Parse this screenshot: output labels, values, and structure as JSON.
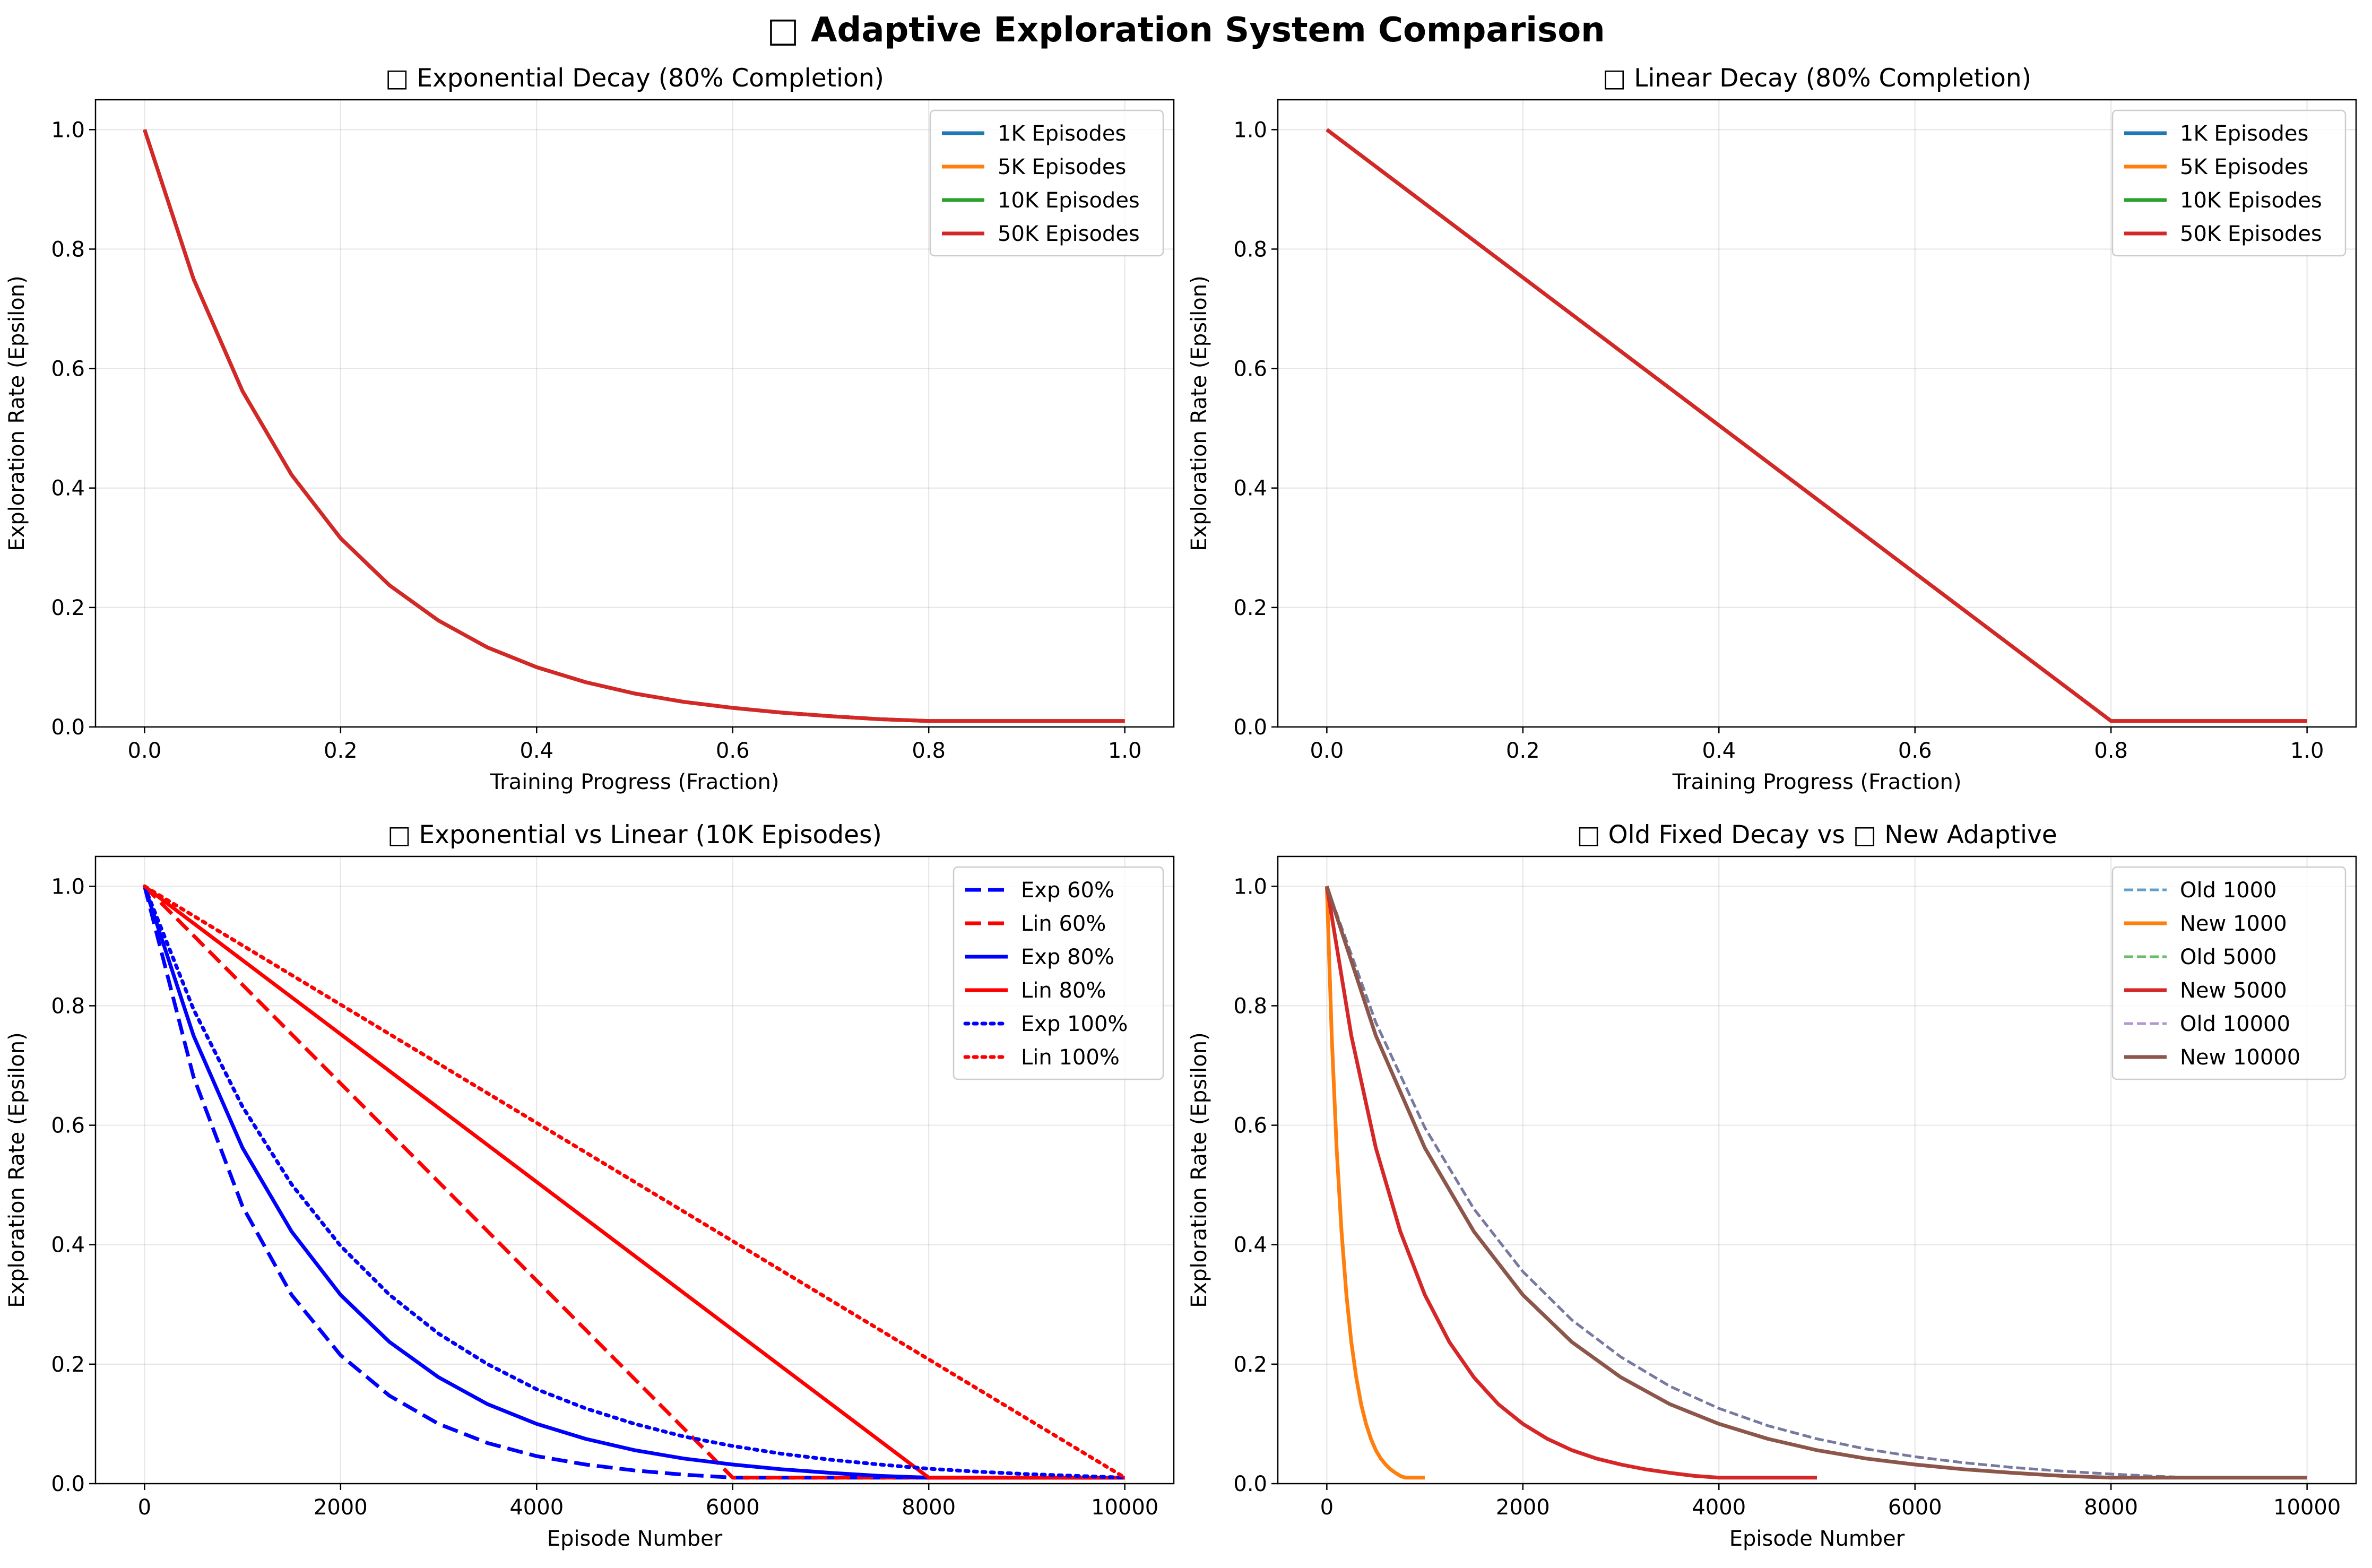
{
  "figure": {
    "suptitle": "□ Adaptive Exploration System Comparison"
  },
  "colors": {
    "blue": "#1f77b4",
    "orange": "#ff7f0e",
    "green": "#2ca02c",
    "red": "#d62728",
    "purple": "#9467bd",
    "brown": "#8c564b",
    "pure_blue": "#0000ff",
    "pure_red": "#ff0000"
  },
  "chart_data": [
    {
      "type": "line",
      "title": "□ Exponential Decay (80% Completion)",
      "xlabel": "Training Progress (Fraction)",
      "ylabel": "Exploration Rate (Epsilon)",
      "xlim": [
        -0.05,
        1.05
      ],
      "ylim": [
        0,
        1.05
      ],
      "xticks": [
        0.0,
        0.2,
        0.4,
        0.6,
        0.8,
        1.0
      ],
      "xtick_labels": [
        "0.0",
        "0.2",
        "0.4",
        "0.6",
        "0.8",
        "1.0"
      ],
      "yticks": [
        0.0,
        0.2,
        0.4,
        0.6,
        0.8,
        1.0
      ],
      "ytick_labels": [
        "0.0",
        "0.2",
        "0.4",
        "0.6",
        "0.8",
        "1.0"
      ],
      "grid": true,
      "legend": "top-right",
      "series": [
        {
          "name": "1K Episodes",
          "color": "#1f77b4",
          "style": "solid",
          "x": [
            0.0,
            0.05,
            0.1,
            0.15,
            0.2,
            0.25,
            0.3,
            0.35,
            0.4,
            0.45,
            0.5,
            0.55,
            0.6,
            0.65,
            0.7,
            0.75,
            0.8,
            0.9,
            1.0
          ],
          "y": [
            1.0,
            0.75,
            0.562,
            0.422,
            0.316,
            0.237,
            0.178,
            0.133,
            0.1,
            0.075,
            0.056,
            0.042,
            0.032,
            0.024,
            0.018,
            0.013,
            0.01,
            0.01,
            0.01
          ]
        },
        {
          "name": "5K Episodes",
          "color": "#ff7f0e",
          "style": "solid",
          "x": [
            0.0,
            0.05,
            0.1,
            0.15,
            0.2,
            0.25,
            0.3,
            0.35,
            0.4,
            0.45,
            0.5,
            0.55,
            0.6,
            0.65,
            0.7,
            0.75,
            0.8,
            0.9,
            1.0
          ],
          "y": [
            1.0,
            0.75,
            0.562,
            0.422,
            0.316,
            0.237,
            0.178,
            0.133,
            0.1,
            0.075,
            0.056,
            0.042,
            0.032,
            0.024,
            0.018,
            0.013,
            0.01,
            0.01,
            0.01
          ]
        },
        {
          "name": "10K Episodes",
          "color": "#2ca02c",
          "style": "solid",
          "x": [
            0.0,
            0.05,
            0.1,
            0.15,
            0.2,
            0.25,
            0.3,
            0.35,
            0.4,
            0.45,
            0.5,
            0.55,
            0.6,
            0.65,
            0.7,
            0.75,
            0.8,
            0.9,
            1.0
          ],
          "y": [
            1.0,
            0.75,
            0.562,
            0.422,
            0.316,
            0.237,
            0.178,
            0.133,
            0.1,
            0.075,
            0.056,
            0.042,
            0.032,
            0.024,
            0.018,
            0.013,
            0.01,
            0.01,
            0.01
          ]
        },
        {
          "name": "50K Episodes",
          "color": "#d62728",
          "style": "solid",
          "x": [
            0.0,
            0.05,
            0.1,
            0.15,
            0.2,
            0.25,
            0.3,
            0.35,
            0.4,
            0.45,
            0.5,
            0.55,
            0.6,
            0.65,
            0.7,
            0.75,
            0.8,
            0.9,
            1.0
          ],
          "y": [
            1.0,
            0.75,
            0.562,
            0.422,
            0.316,
            0.237,
            0.178,
            0.133,
            0.1,
            0.075,
            0.056,
            0.042,
            0.032,
            0.024,
            0.018,
            0.013,
            0.01,
            0.01,
            0.01
          ]
        }
      ]
    },
    {
      "type": "line",
      "title": "□ Linear Decay (80% Completion)",
      "xlabel": "Training Progress (Fraction)",
      "ylabel": "Exploration Rate (Epsilon)",
      "xlim": [
        -0.05,
        1.05
      ],
      "ylim": [
        0,
        1.05
      ],
      "xticks": [
        0.0,
        0.2,
        0.4,
        0.6,
        0.8,
        1.0
      ],
      "xtick_labels": [
        "0.0",
        "0.2",
        "0.4",
        "0.6",
        "0.8",
        "1.0"
      ],
      "yticks": [
        0.0,
        0.2,
        0.4,
        0.6,
        0.8,
        1.0
      ],
      "ytick_labels": [
        "0.0",
        "0.2",
        "0.4",
        "0.6",
        "0.8",
        "1.0"
      ],
      "grid": true,
      "legend": "top-right",
      "series": [
        {
          "name": "1K Episodes",
          "color": "#1f77b4",
          "style": "solid",
          "x": [
            0.0,
            0.8,
            1.0
          ],
          "y": [
            1.0,
            0.01,
            0.01
          ]
        },
        {
          "name": "5K Episodes",
          "color": "#ff7f0e",
          "style": "solid",
          "x": [
            0.0,
            0.8,
            1.0
          ],
          "y": [
            1.0,
            0.01,
            0.01
          ]
        },
        {
          "name": "10K Episodes",
          "color": "#2ca02c",
          "style": "solid",
          "x": [
            0.0,
            0.8,
            1.0
          ],
          "y": [
            1.0,
            0.01,
            0.01
          ]
        },
        {
          "name": "50K Episodes",
          "color": "#d62728",
          "style": "solid",
          "x": [
            0.0,
            0.8,
            1.0
          ],
          "y": [
            1.0,
            0.01,
            0.01
          ]
        }
      ]
    },
    {
      "type": "line",
      "title": "□ Exponential vs Linear (10K Episodes)",
      "xlabel": "Episode Number",
      "ylabel": "Exploration Rate (Epsilon)",
      "xlim": [
        -500,
        10500
      ],
      "ylim": [
        0,
        1.05
      ],
      "xticks": [
        0,
        2000,
        4000,
        6000,
        8000,
        10000
      ],
      "xtick_labels": [
        "0",
        "2000",
        "4000",
        "6000",
        "8000",
        "10000"
      ],
      "yticks": [
        0.0,
        0.2,
        0.4,
        0.6,
        0.8,
        1.0
      ],
      "ytick_labels": [
        "0.0",
        "0.2",
        "0.4",
        "0.6",
        "0.8",
        "1.0"
      ],
      "grid": true,
      "legend": "top-right",
      "series": [
        {
          "name": "Exp 60%",
          "color": "#0000ff",
          "style": "dashed",
          "x": [
            0,
            500,
            1000,
            1500,
            2000,
            2500,
            3000,
            3500,
            4000,
            4500,
            5000,
            5500,
            6000,
            8000,
            10000
          ],
          "y": [
            1.0,
            0.681,
            0.464,
            0.316,
            0.215,
            0.147,
            0.1,
            0.068,
            0.046,
            0.032,
            0.022,
            0.015,
            0.01,
            0.01,
            0.01
          ]
        },
        {
          "name": "Lin 60%",
          "color": "#ff0000",
          "style": "dashed",
          "x": [
            0,
            6000,
            10000
          ],
          "y": [
            1.0,
            0.01,
            0.01
          ]
        },
        {
          "name": "Exp 80%",
          "color": "#0000ff",
          "style": "solid",
          "x": [
            0,
            500,
            1000,
            1500,
            2000,
            2500,
            3000,
            3500,
            4000,
            4500,
            5000,
            5500,
            6000,
            6500,
            7000,
            7500,
            8000,
            10000
          ],
          "y": [
            1.0,
            0.75,
            0.562,
            0.422,
            0.316,
            0.237,
            0.178,
            0.133,
            0.1,
            0.075,
            0.056,
            0.042,
            0.032,
            0.024,
            0.018,
            0.013,
            0.01,
            0.01
          ]
        },
        {
          "name": "Lin 80%",
          "color": "#ff0000",
          "style": "solid",
          "x": [
            0,
            8000,
            10000
          ],
          "y": [
            1.0,
            0.01,
            0.01
          ]
        },
        {
          "name": "Exp 100%",
          "color": "#0000ff",
          "style": "dotted",
          "x": [
            0,
            500,
            1000,
            1500,
            2000,
            2500,
            3000,
            3500,
            4000,
            4500,
            5000,
            5500,
            6000,
            6500,
            7000,
            7500,
            8000,
            8500,
            9000,
            9500,
            10000
          ],
          "y": [
            1.0,
            0.794,
            0.631,
            0.501,
            0.398,
            0.316,
            0.251,
            0.2,
            0.158,
            0.126,
            0.1,
            0.079,
            0.063,
            0.05,
            0.04,
            0.032,
            0.025,
            0.02,
            0.016,
            0.013,
            0.01
          ]
        },
        {
          "name": "Lin 100%",
          "color": "#ff0000",
          "style": "dotted",
          "x": [
            0,
            10000
          ],
          "y": [
            1.0,
            0.01
          ]
        }
      ]
    },
    {
      "type": "line",
      "title": "□ Old Fixed Decay vs □ New Adaptive",
      "xlabel": "Episode Number",
      "ylabel": "Exploration Rate (Epsilon)",
      "xlim": [
        -500,
        10500
      ],
      "ylim": [
        0,
        1.05
      ],
      "xticks": [
        0,
        2000,
        4000,
        6000,
        8000,
        10000
      ],
      "xtick_labels": [
        "0",
        "2000",
        "4000",
        "6000",
        "8000",
        "10000"
      ],
      "yticks": [
        0.0,
        0.2,
        0.4,
        0.6,
        0.8,
        1.0
      ],
      "ytick_labels": [
        "0.0",
        "0.2",
        "0.4",
        "0.6",
        "0.8",
        "1.0"
      ],
      "grid": true,
      "legend": "top-right",
      "series": [
        {
          "name": "Old 1000",
          "color": "#1f77b4",
          "style": "dashed-light",
          "x": [
            0,
            500,
            1000,
            1500,
            2000,
            2500,
            3000,
            3500,
            4000,
            4500,
            5000,
            5500,
            6000,
            6500,
            7000,
            7500,
            8000,
            8500,
            8850,
            9500,
            10000
          ],
          "y": [
            1.0,
            0.772,
            0.596,
            0.46,
            0.355,
            0.274,
            0.212,
            0.163,
            0.126,
            0.097,
            0.075,
            0.058,
            0.045,
            0.035,
            0.027,
            0.021,
            0.016,
            0.012,
            0.01,
            0.01,
            0.01
          ]
        },
        {
          "name": "New 1000",
          "color": "#ff7f0e",
          "style": "solid",
          "x": [
            0,
            50,
            100,
            150,
            200,
            250,
            300,
            350,
            400,
            450,
            500,
            550,
            600,
            650,
            700,
            750,
            800,
            900,
            1000
          ],
          "y": [
            1.0,
            0.75,
            0.562,
            0.422,
            0.316,
            0.237,
            0.178,
            0.133,
            0.1,
            0.075,
            0.056,
            0.042,
            0.032,
            0.024,
            0.018,
            0.013,
            0.01,
            0.01,
            0.01
          ]
        },
        {
          "name": "Old 5000",
          "color": "#2ca02c",
          "style": "dashed-light",
          "x": [
            0,
            500,
            1000,
            1500,
            2000,
            2500,
            3000,
            3500,
            4000,
            4500,
            5000,
            5500,
            6000,
            6500,
            7000,
            7500,
            8000,
            8500,
            8850,
            9500,
            10000
          ],
          "y": [
            1.0,
            0.772,
            0.596,
            0.46,
            0.355,
            0.274,
            0.212,
            0.163,
            0.126,
            0.097,
            0.075,
            0.058,
            0.045,
            0.035,
            0.027,
            0.021,
            0.016,
            0.012,
            0.01,
            0.01,
            0.01
          ]
        },
        {
          "name": "New 5000",
          "color": "#d62728",
          "style": "solid",
          "x": [
            0,
            250,
            500,
            750,
            1000,
            1250,
            1500,
            1750,
            2000,
            2250,
            2500,
            2750,
            3000,
            3250,
            3500,
            3750,
            4000,
            4500,
            5000
          ],
          "y": [
            1.0,
            0.75,
            0.562,
            0.422,
            0.316,
            0.237,
            0.178,
            0.133,
            0.1,
            0.075,
            0.056,
            0.042,
            0.032,
            0.024,
            0.018,
            0.013,
            0.01,
            0.01,
            0.01
          ]
        },
        {
          "name": "Old 10000",
          "color": "#9467bd",
          "style": "dashed-light",
          "x": [
            0,
            500,
            1000,
            1500,
            2000,
            2500,
            3000,
            3500,
            4000,
            4500,
            5000,
            5500,
            6000,
            6500,
            7000,
            7500,
            8000,
            8500,
            8850,
            9500,
            10000
          ],
          "y": [
            1.0,
            0.772,
            0.596,
            0.46,
            0.355,
            0.274,
            0.212,
            0.163,
            0.126,
            0.097,
            0.075,
            0.058,
            0.045,
            0.035,
            0.027,
            0.021,
            0.016,
            0.012,
            0.01,
            0.01,
            0.01
          ]
        },
        {
          "name": "New 10000",
          "color": "#8c564b",
          "style": "solid",
          "x": [
            0,
            500,
            1000,
            1500,
            2000,
            2500,
            3000,
            3500,
            4000,
            4500,
            5000,
            5500,
            6000,
            6500,
            7000,
            7500,
            8000,
            9000,
            10000
          ],
          "y": [
            1.0,
            0.75,
            0.562,
            0.422,
            0.316,
            0.237,
            0.178,
            0.133,
            0.1,
            0.075,
            0.056,
            0.042,
            0.032,
            0.024,
            0.018,
            0.013,
            0.01,
            0.01,
            0.01
          ]
        }
      ]
    }
  ]
}
